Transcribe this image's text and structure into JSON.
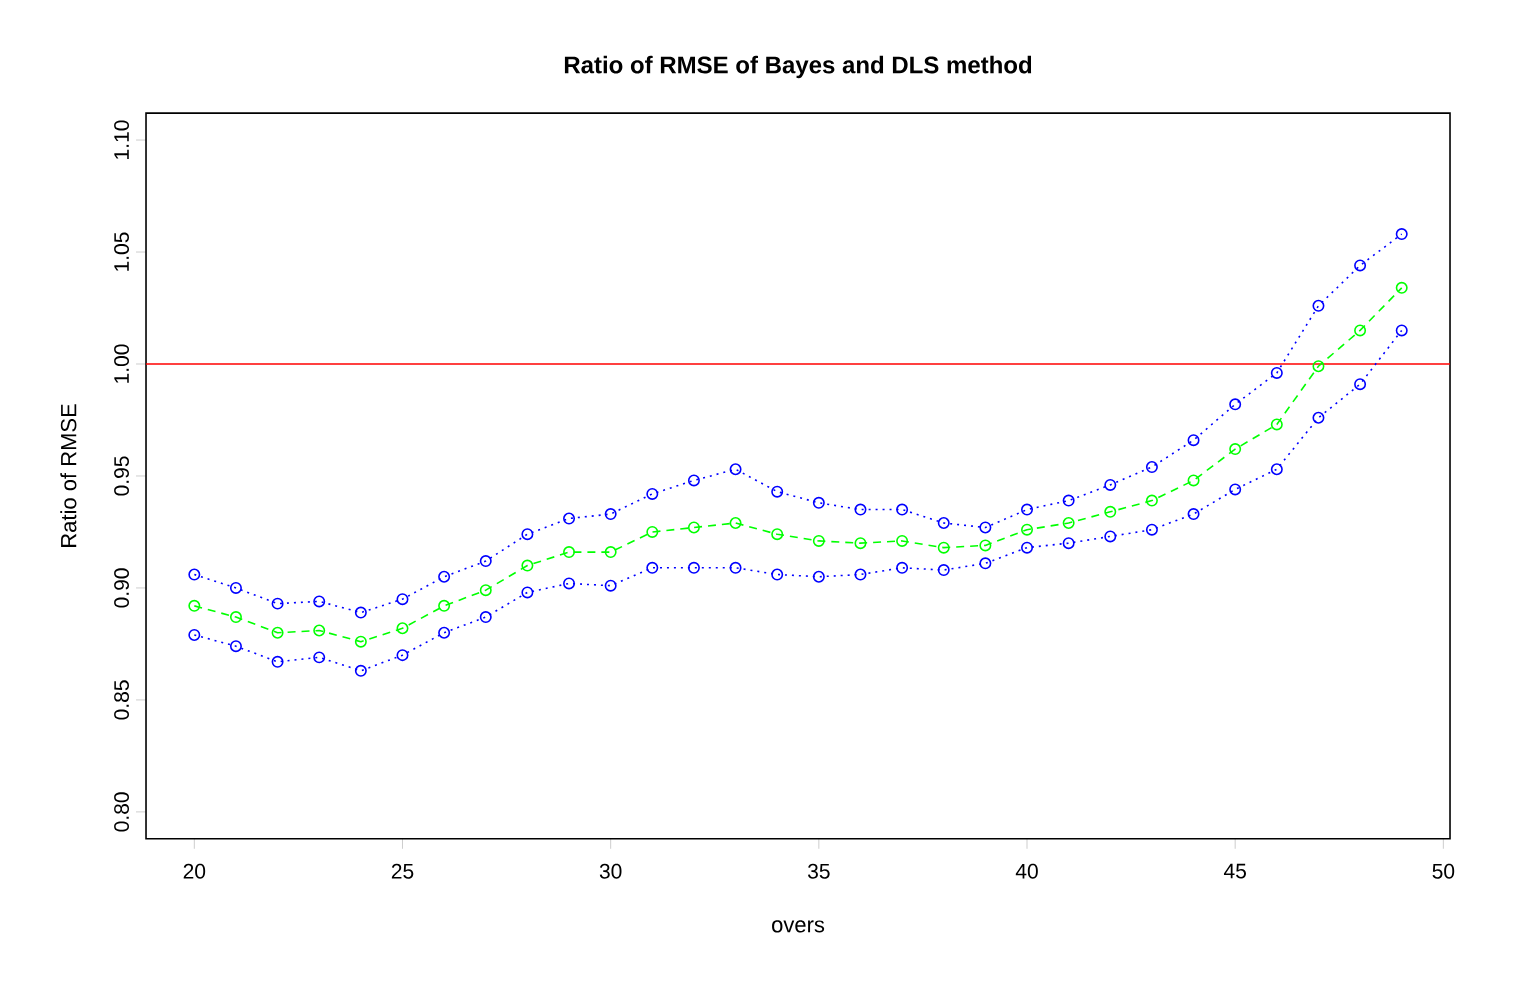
{
  "chart_data": {
    "type": "line",
    "title": "Ratio of RMSE of Bayes and DLS method",
    "xlabel": "overs",
    "ylabel": "Ratio of RMSE",
    "x": [
      20,
      21,
      22,
      23,
      24,
      25,
      26,
      27,
      28,
      29,
      30,
      31,
      32,
      33,
      34,
      35,
      36,
      37,
      38,
      39,
      40,
      41,
      42,
      43,
      44,
      45,
      46,
      47,
      48,
      49
    ],
    "series": [
      {
        "color": "#0000ff",
        "line_style": "dotted",
        "values": [
          0.906,
          0.9,
          0.893,
          0.894,
          0.889,
          0.895,
          0.905,
          0.912,
          0.924,
          0.931,
          0.933,
          0.942,
          0.948,
          0.953,
          0.943,
          0.938,
          0.935,
          0.935,
          0.929,
          0.927,
          0.935,
          0.939,
          0.946,
          0.954,
          0.966,
          0.982,
          0.996,
          1.026,
          1.044,
          1.058
        ]
      },
      {
        "color": "#00ff00",
        "line_style": "dashed",
        "values": [
          0.892,
          0.887,
          0.88,
          0.881,
          0.876,
          0.882,
          0.892,
          0.899,
          0.91,
          0.916,
          0.916,
          0.925,
          0.927,
          0.929,
          0.924,
          0.921,
          0.92,
          0.921,
          0.918,
          0.919,
          0.926,
          0.929,
          0.934,
          0.939,
          0.948,
          0.962,
          0.973,
          0.999,
          1.015,
          1.034
        ]
      },
      {
        "color": "#0000ff",
        "line_style": "dotted",
        "values": [
          0.879,
          0.874,
          0.867,
          0.869,
          0.863,
          0.87,
          0.88,
          0.887,
          0.898,
          0.902,
          0.901,
          0.909,
          0.909,
          0.909,
          0.906,
          0.905,
          0.906,
          0.909,
          0.908,
          0.911,
          0.918,
          0.92,
          0.923,
          0.926,
          0.933,
          0.944,
          0.953,
          0.976,
          0.991,
          1.015
        ]
      }
    ],
    "marker": "circle",
    "xlim": [
      18.84,
      50.16
    ],
    "ylim": [
      0.788,
      1.112
    ],
    "xticks": [
      20,
      25,
      30,
      35,
      40,
      45,
      50
    ],
    "yticks": [
      {
        "value": 0.8,
        "label": "0.80"
      },
      {
        "value": 0.85,
        "label": "0.85"
      },
      {
        "value": 0.9,
        "label": "0.90"
      },
      {
        "value": 0.95,
        "label": "0.95"
      },
      {
        "value": 1.0,
        "label": "1.00"
      },
      {
        "value": 1.05,
        "label": "1.05"
      },
      {
        "value": 1.1,
        "label": "1.10"
      }
    ],
    "ref_lines": [
      {
        "axis": "y",
        "value": 1.0,
        "color": "#ff0000"
      }
    ]
  }
}
